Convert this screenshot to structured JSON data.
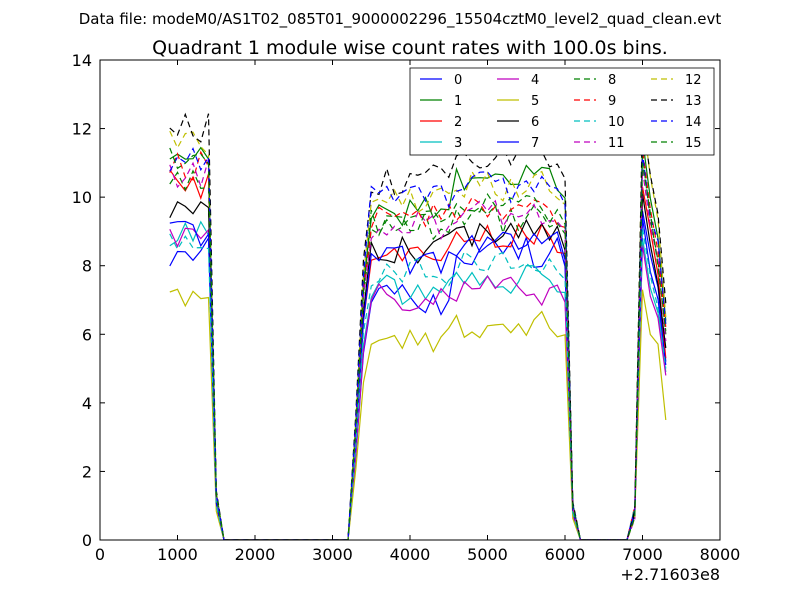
{
  "chart_data": {
    "type": "line",
    "suptitle": "Data file: modeM0/AS1T02_085T01_9000002296_15504cztM0_level2_quad_clean.evt",
    "title": "Quadrant 1 module wise count rates with 100.0s bins.",
    "xlabel": "",
    "ylabel": "",
    "x_offset_label": "+2.71603e8",
    "xlim": [
      0,
      8000
    ],
    "ylim": [
      0,
      14
    ],
    "x_ticks": [
      "0",
      "1000",
      "2000",
      "3000",
      "4000",
      "5000",
      "6000",
      "7000",
      "8000"
    ],
    "y_ticks": [
      "0",
      "2",
      "4",
      "6",
      "8",
      "10",
      "12",
      "14"
    ],
    "legend_position": "top-right",
    "x": [
      900,
      1000,
      1100,
      1200,
      1300,
      1400,
      1500,
      1600,
      1700,
      1800,
      1900,
      2000,
      2100,
      2200,
      2300,
      2400,
      2500,
      2600,
      2700,
      2800,
      2900,
      3000,
      3100,
      3200,
      3300,
      3400,
      3500,
      3600,
      3700,
      3800,
      3900,
      4000,
      4100,
      4200,
      4300,
      4400,
      4500,
      4600,
      4700,
      4800,
      4900,
      5000,
      5100,
      5200,
      5300,
      5400,
      5500,
      5600,
      5700,
      5800,
      5900,
      6000,
      6100,
      6200,
      6300,
      6400,
      6500,
      6600,
      6700,
      6800,
      6900,
      7000,
      7100,
      7200,
      7300
    ],
    "series": [
      {
        "name": "0",
        "color": "#0000ff",
        "dash": "solid",
        "base_pre": 8.4,
        "base_mid": 7.0,
        "base_post": 8.4,
        "peak": 9.6,
        "last": 5.2
      },
      {
        "name": "1",
        "color": "#008000",
        "dash": "solid",
        "base_pre": 11.3,
        "base_mid": 9.6,
        "base_post": 10.5,
        "peak": 11.7,
        "last": 6.4
      },
      {
        "name": "2",
        "color": "#ff0000",
        "dash": "solid",
        "base_pre": 10.4,
        "base_mid": 8.2,
        "base_post": 8.8,
        "peak": 10.3,
        "last": 5.3
      },
      {
        "name": "3",
        "color": "#00bfbf",
        "dash": "solid",
        "base_pre": 9.0,
        "base_mid": 7.3,
        "base_post": 7.6,
        "peak": 8.8,
        "last": 4.9
      },
      {
        "name": "4",
        "color": "#bf00bf",
        "dash": "solid",
        "base_pre": 8.8,
        "base_mid": 7.1,
        "base_post": 7.3,
        "peak": 8.6,
        "last": 4.8
      },
      {
        "name": "5",
        "color": "#bfbf00",
        "dash": "solid",
        "base_pre": 7.0,
        "base_mid": 5.9,
        "base_post": 6.3,
        "peak": 7.3,
        "last": 3.5
      },
      {
        "name": "6",
        "color": "#000000",
        "dash": "solid",
        "base_pre": 9.7,
        "base_mid": 8.5,
        "base_post": 8.9,
        "peak": 10.1,
        "last": 5.6
      },
      {
        "name": "7",
        "color": "#0000ff",
        "dash": "solid",
        "base_pre": 8.9,
        "base_mid": 8.2,
        "base_post": 8.6,
        "peak": 9.4,
        "last": 5.1
      },
      {
        "name": "8",
        "color": "#008000",
        "dash": "dashed",
        "base_pre": 10.6,
        "base_mid": 9.1,
        "base_post": 9.4,
        "peak": 11.2,
        "last": 6.0
      },
      {
        "name": "9",
        "color": "#ff0000",
        "dash": "dashed",
        "base_pre": 10.9,
        "base_mid": 9.4,
        "base_post": 9.6,
        "peak": 11.4,
        "last": 6.2
      },
      {
        "name": "10",
        "color": "#00bfbf",
        "dash": "dashed",
        "base_pre": 8.6,
        "base_mid": 7.8,
        "base_post": 8.0,
        "peak": 9.1,
        "last": 5.0
      },
      {
        "name": "11",
        "color": "#bf00bf",
        "dash": "dashed",
        "base_pre": 10.7,
        "base_mid": 9.2,
        "base_post": 9.5,
        "peak": 10.8,
        "last": 5.8
      },
      {
        "name": "12",
        "color": "#bfbf00",
        "dash": "dashed",
        "base_pre": 11.6,
        "base_mid": 9.9,
        "base_post": 10.3,
        "peak": 12.4,
        "last": 6.5
      },
      {
        "name": "13",
        "color": "#000000",
        "dash": "dashed",
        "base_pre": 12.0,
        "base_mid": 10.5,
        "base_post": 11.1,
        "peak": 12.3,
        "last": 6.9
      },
      {
        "name": "14",
        "color": "#0000ff",
        "dash": "dashed",
        "base_pre": 11.2,
        "base_mid": 9.9,
        "base_post": 10.3,
        "peak": 11.3,
        "last": 6.3
      },
      {
        "name": "15",
        "color": "#008000",
        "dash": "dashed",
        "base_pre": 11.1,
        "base_mid": 9.3,
        "base_post": 9.7,
        "peak": 11.0,
        "last": 6.1
      }
    ]
  }
}
